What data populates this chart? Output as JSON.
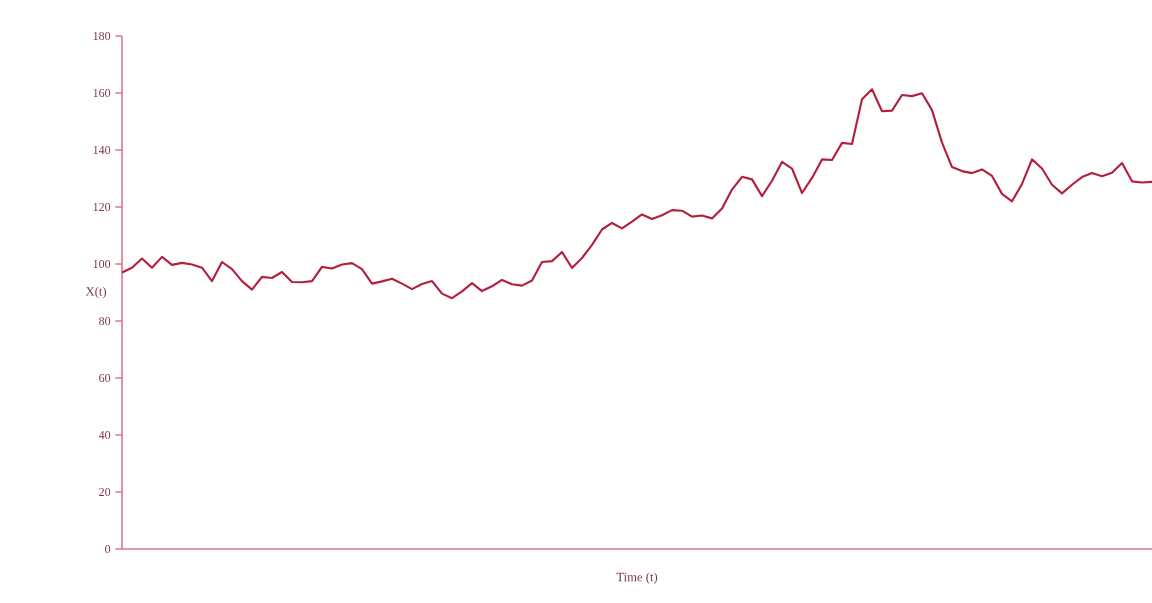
{
  "chart_data": {
    "type": "line",
    "xlabel": "Time (t)",
    "ylabel": "X(t)",
    "categories": [
      null,
      null,
      null,
      null,
      null,
      null,
      null,
      null,
      null,
      null,
      null,
      null,
      null,
      null,
      null,
      null,
      null,
      null,
      null,
      null,
      null,
      null,
      null,
      null,
      null,
      null,
      null,
      null,
      null,
      null,
      null,
      null,
      null,
      null,
      null,
      null,
      null,
      null,
      null,
      null,
      null,
      null,
      null,
      null,
      null,
      null,
      null,
      null,
      null,
      null,
      null,
      null,
      null,
      null,
      null,
      null,
      null,
      null,
      null,
      null,
      null,
      null,
      null,
      null,
      null,
      null,
      null,
      null,
      null,
      null,
      null,
      null,
      null,
      null,
      null,
      null,
      null,
      null,
      null,
      null,
      null,
      null,
      null,
      null,
      null,
      null,
      null,
      null,
      null,
      null,
      null,
      null,
      null,
      null,
      null,
      null,
      null,
      null,
      null,
      null,
      null,
      null,
      null,
      null
    ],
    "values": [
      97,
      98.7,
      101.9,
      98.7,
      102.5,
      99.7,
      100.4,
      99.8,
      98.7,
      94,
      100.7,
      98.2,
      94,
      91,
      95.5,
      95.1,
      97.2,
      93.7,
      93.6,
      94,
      99,
      98.4,
      99.8,
      100.3,
      98.2,
      93.1,
      93.9,
      94.8,
      93.1,
      91.2,
      93,
      94,
      89.6,
      88,
      90.4,
      93.3,
      90.5,
      92.2,
      94.4,
      92.9,
      92.4,
      94.2,
      100.7,
      101,
      104.2,
      98.6,
      102.1,
      106.7,
      112.1,
      114.4,
      112.5,
      114.9,
      117.4,
      115.8,
      117.1,
      118.9,
      118.7,
      116.6,
      117,
      116,
      119.5,
      126.1,
      130.6,
      129.7,
      123.8,
      129.2,
      135.8,
      133.5,
      124.9,
      130.2,
      136.7,
      136.5,
      142.5,
      142.1,
      157.8,
      161.3,
      153.6,
      153.8,
      159.3,
      158.9,
      159.9,
      154,
      142.6,
      134,
      132.6,
      131.9,
      133.2,
      130.9,
      124.6,
      122,
      128.1,
      136.7,
      133.5,
      127.8,
      124.8,
      127.8,
      130.5,
      131.9,
      130.8,
      132,
      135.4,
      129,
      128.6,
      128.8
    ],
    "color": "#b3203f",
    "ylim": [
      0,
      180
    ],
    "yticks": [
      0,
      20,
      40,
      60,
      80,
      100,
      120,
      140,
      160,
      180
    ]
  }
}
